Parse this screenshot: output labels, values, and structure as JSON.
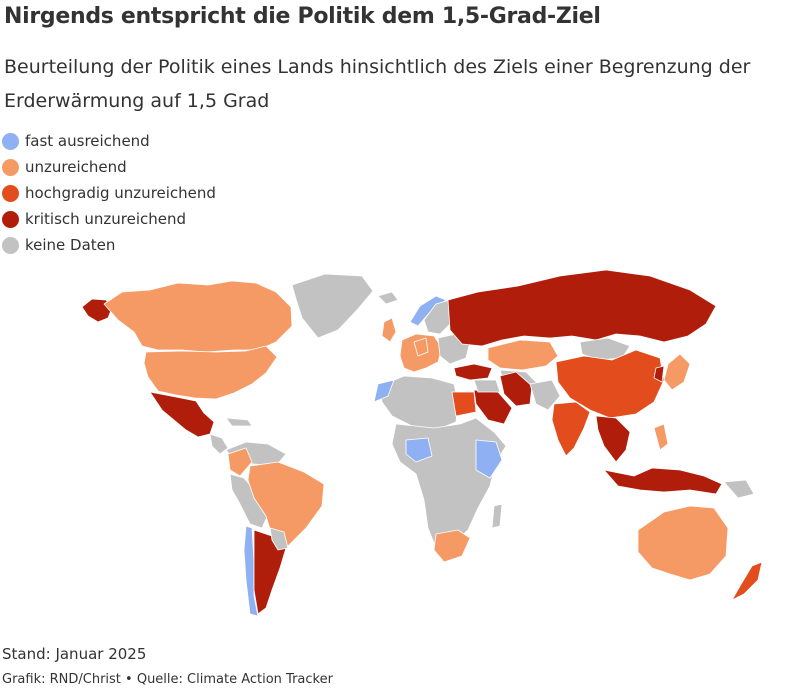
{
  "title": "Nirgends entspricht die Politik dem 1,5-Grad-Ziel",
  "subtitle": "Beurteilung der Politik eines Lands hinsichtlich des Ziels einer Begrenzung der Erderwärmung auf 1,5 Grad",
  "legend": [
    {
      "key": "fast",
      "label": "fast ausreichend",
      "color": "#8fb0f2"
    },
    {
      "key": "unz",
      "label": "unzureichend",
      "color": "#f59a65"
    },
    {
      "key": "hoch",
      "label": "hochgradig unzureichend",
      "color": "#e34c1d"
    },
    {
      "key": "krit",
      "label": "kritisch unzureichend",
      "color": "#b01e0b"
    },
    {
      "key": "none",
      "label": "keine Daten",
      "color": "#c2c2c2"
    }
  ],
  "footer": {
    "stand": "Stand: Januar 2025",
    "credit": "Grafik: RND/Christ • Quelle: Climate Action Tracker"
  }
}
